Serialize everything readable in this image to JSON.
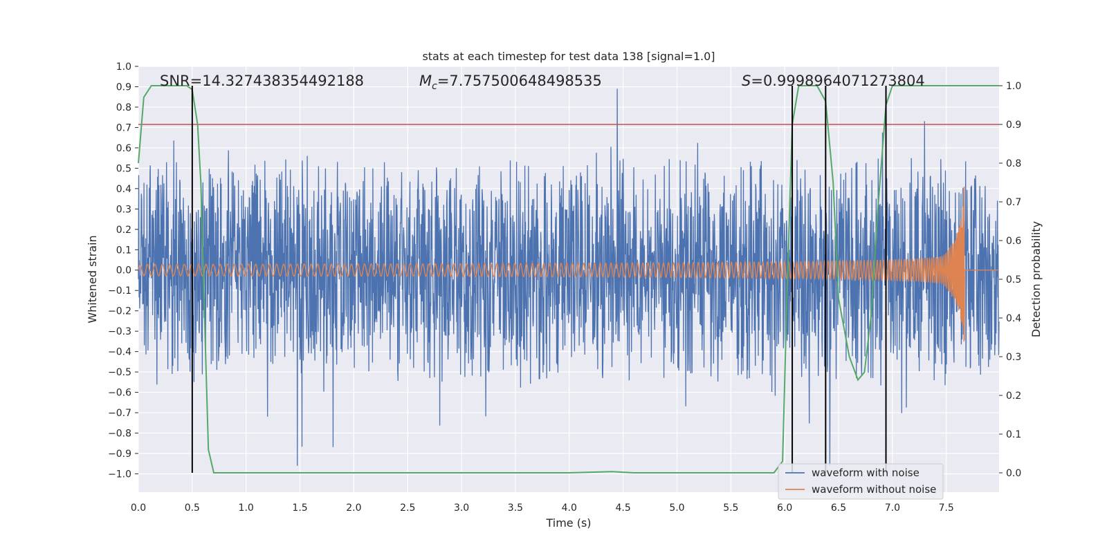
{
  "chart_data": {
    "type": "line",
    "title": "stats at each timestep for test data 138 [signal=1.0]",
    "xlabel": "Time (s)",
    "ylabel": "Whitened strain",
    "y2label": "Detection probability",
    "xlim": [
      0.0,
      7.99
    ],
    "ylim": [
      -1.09,
      1.0
    ],
    "y2lim": [
      -0.05,
      1.05
    ],
    "xticks": [
      0.0,
      0.5,
      1.0,
      1.5,
      2.0,
      2.5,
      3.0,
      3.5,
      4.0,
      4.5,
      5.0,
      5.5,
      6.0,
      6.5,
      7.0,
      7.5
    ],
    "xtick_labels": [
      "0.0",
      "0.5",
      "1.0",
      "1.5",
      "2.0",
      "2.5",
      "3.0",
      "3.5",
      "4.0",
      "4.5",
      "5.0",
      "5.5",
      "6.0",
      "6.5",
      "7.0",
      "7.5"
    ],
    "yticks": [
      1.0,
      0.9,
      0.8,
      0.7,
      0.6,
      0.5,
      0.4,
      0.3,
      0.2,
      0.1,
      0.0,
      -0.1,
      -0.2,
      -0.3,
      -0.4,
      -0.5,
      -0.6,
      -0.7,
      -0.8,
      -0.9,
      -1.0
    ],
    "ytick_labels": [
      "1.0",
      "0.9",
      "0.8",
      "0.7",
      "0.6",
      "0.5",
      "0.4",
      "0.3",
      "0.2",
      "0.1",
      "0.0",
      "−0.1",
      "−0.2",
      "−0.3",
      "−0.4",
      "−0.5",
      "−0.6",
      "−0.7",
      "−0.8",
      "−0.9",
      "−1.0"
    ],
    "y2ticks": [
      1.0,
      0.9,
      0.8,
      0.7,
      0.6,
      0.5,
      0.4,
      0.3,
      0.2,
      0.1,
      0.0
    ],
    "y2tick_labels": [
      "1.0",
      "0.9",
      "0.8",
      "0.7",
      "0.6",
      "0.5",
      "0.4",
      "0.3",
      "0.2",
      "0.1",
      "0.0"
    ],
    "annotations": {
      "snr": "SNR=14.327438354492188",
      "mc_symbol": "M",
      "mc_sub": "c",
      "mc_value": "=7.757500648498535",
      "s_symbol": "S",
      "s_value": "=0.9998964071273804"
    },
    "threshold": {
      "value": 0.9,
      "axis": "y2"
    },
    "vertical_lines_x": [
      0.5,
      6.07,
      6.38,
      6.94
    ],
    "series": [
      {
        "name": "waveform with noise",
        "color": "#4c72b0",
        "kind": "noise",
        "noise_band": 0.3,
        "range": [
          -0.96,
          0.89
        ]
      },
      {
        "name": "waveform without noise",
        "color": "#dd8452",
        "kind": "chirp",
        "merger_time": 7.67,
        "peak": 0.49,
        "trough": -0.35
      },
      {
        "name": "detection probability",
        "color": "#55a868",
        "axis": "y2",
        "x": [
          0.0,
          0.05,
          0.12,
          0.2,
          0.3,
          0.45,
          0.5,
          0.55,
          0.58,
          0.62,
          0.65,
          0.7,
          1.0,
          2.0,
          3.0,
          4.0,
          4.4,
          4.6,
          5.0,
          5.5,
          5.9,
          5.98,
          6.02,
          6.07,
          6.13,
          6.2,
          6.3,
          6.38,
          6.45,
          6.5,
          6.6,
          6.68,
          6.74,
          6.8,
          6.87,
          6.94,
          7.0,
          7.2,
          7.5,
          7.99
        ],
        "y": [
          0.8,
          0.97,
          1.0,
          1.0,
          1.0,
          1.0,
          0.99,
          0.9,
          0.75,
          0.35,
          0.06,
          0.0,
          0.0,
          0.0,
          0.0,
          0.0,
          0.003,
          0.0,
          0.0,
          0.0,
          0.0,
          0.03,
          0.45,
          0.9,
          1.0,
          1.0,
          1.0,
          0.96,
          0.75,
          0.45,
          0.3,
          0.24,
          0.26,
          0.4,
          0.7,
          0.95,
          1.0,
          1.0,
          1.0,
          1.0
        ]
      },
      {
        "name": "threshold",
        "color": "#c44e52",
        "axis": "y2",
        "x": [
          0.0,
          7.99
        ],
        "y": [
          0.9,
          0.9
        ]
      }
    ],
    "legend": {
      "position": "lower-right",
      "entries": [
        {
          "label": "waveform with noise",
          "color": "#4c72b0"
        },
        {
          "label": "waveform without noise",
          "color": "#dd8452"
        }
      ]
    },
    "grid": true
  }
}
